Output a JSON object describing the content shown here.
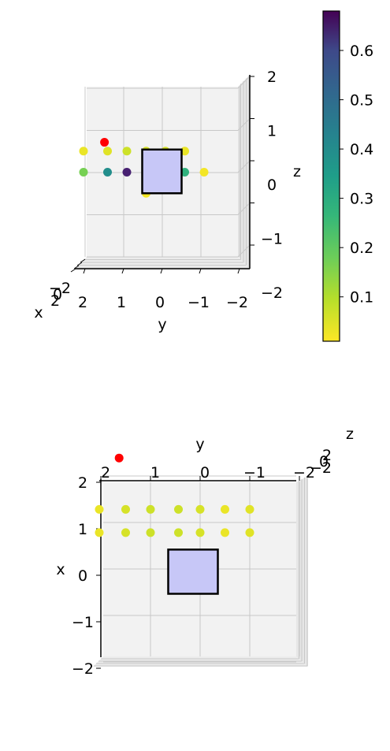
{
  "chart_data": [
    {
      "type": "scatter",
      "projection": "3d",
      "view": "front (y-z plane)",
      "xlabel": "x",
      "ylabel": "y",
      "zlabel": "z",
      "xlim": [
        -2,
        2
      ],
      "ylim": [
        -2,
        2
      ],
      "zlim": [
        -2,
        2
      ],
      "y_ticks": [
        "2",
        "1",
        "0",
        "−1",
        "−2"
      ],
      "z_ticks": [
        "2",
        "1",
        "0",
        "−1",
        "−2"
      ],
      "x_ticks_clutter": [
        "−2",
        "0",
        "2"
      ],
      "grid": true,
      "points": [
        {
          "y": 2.0,
          "z": 0.5,
          "v": 0.03
        },
        {
          "y": 1.5,
          "z": 0.5,
          "v": 0.04
        },
        {
          "y": 1.0,
          "z": 0.5,
          "v": 0.06
        },
        {
          "y": 0.5,
          "z": 0.5,
          "v": 0.05
        },
        {
          "y": 0.0,
          "z": 0.5,
          "v": 0.05
        },
        {
          "y": -0.5,
          "z": 0.5,
          "v": 0.03
        },
        {
          "y": 2.0,
          "z": 0.0,
          "v": 0.15
        },
        {
          "y": 1.5,
          "z": 0.0,
          "v": 0.35
        },
        {
          "y": 1.0,
          "z": 0.0,
          "v": 0.62
        },
        {
          "y": 0.5,
          "z": 0.0,
          "v": 0.68
        },
        {
          "y": 0.0,
          "z": 0.0,
          "v": 0.48
        },
        {
          "y": -0.5,
          "z": 0.0,
          "v": 0.25
        },
        {
          "y": -1.0,
          "z": 0.0,
          "v": 0.02
        },
        {
          "y": 0.5,
          "z": -0.5,
          "v": 0.02
        }
      ],
      "marker": {
        "y": 1.6,
        "z": 0.7,
        "color": "#ff0000"
      },
      "rectangle": {
        "y": [
          -0.5,
          0.5
        ],
        "z": [
          -0.5,
          0.5
        ],
        "fill": "#c7c7f7",
        "edge": "#000000"
      },
      "colorbar": {
        "min": 0.01,
        "max": 0.68,
        "ticks": [
          "0.1",
          "0.2",
          "0.3",
          "0.4",
          "0.5",
          "0.6"
        ],
        "tick_values": [
          0.1,
          0.2,
          0.3,
          0.4,
          0.5,
          0.6
        ],
        "colormap": "viridis_r"
      }
    },
    {
      "type": "scatter",
      "projection": "3d",
      "view": "top (x-y plane)",
      "xlabel": "x",
      "ylabel": "y",
      "zlabel": "z",
      "xlim": [
        -2,
        2
      ],
      "ylim": [
        -2,
        2
      ],
      "zlim": [
        -2,
        2
      ],
      "x_ticks": [
        "2",
        "1",
        "0",
        "−1",
        "−2"
      ],
      "y_ticks": [
        "2",
        "1",
        "0",
        "−1",
        "−2"
      ],
      "z_ticks_clutter": [
        "−2",
        "0",
        "2"
      ],
      "grid": true,
      "points": [
        {
          "y": 2.0,
          "x": 1.4,
          "v": 0.03
        },
        {
          "y": 1.5,
          "x": 1.4,
          "v": 0.05
        },
        {
          "y": 1.0,
          "x": 1.4,
          "v": 0.06
        },
        {
          "y": 0.5,
          "x": 1.4,
          "v": 0.06
        },
        {
          "y": 0.0,
          "x": 1.4,
          "v": 0.05
        },
        {
          "y": -0.5,
          "x": 1.4,
          "v": 0.03
        },
        {
          "y": -1.0,
          "x": 1.4,
          "v": 0.04
        },
        {
          "y": 2.0,
          "x": 0.9,
          "v": 0.03
        },
        {
          "y": 1.5,
          "x": 0.9,
          "v": 0.05
        },
        {
          "y": 1.0,
          "x": 0.9,
          "v": 0.06
        },
        {
          "y": 0.5,
          "x": 0.9,
          "v": 0.06
        },
        {
          "y": 0.0,
          "x": 0.9,
          "v": 0.05
        },
        {
          "y": -0.5,
          "x": 0.9,
          "v": 0.03
        },
        {
          "y": -1.0,
          "x": 0.9,
          "v": 0.04
        }
      ],
      "marker": {
        "y": 1.6,
        "x": 2.2,
        "color": "#ff0000"
      },
      "rectangle": {
        "y": [
          -0.5,
          0.5
        ],
        "x": [
          -0.5,
          0.4
        ],
        "fill": "#c7c7f7",
        "edge": "#000000"
      }
    }
  ]
}
